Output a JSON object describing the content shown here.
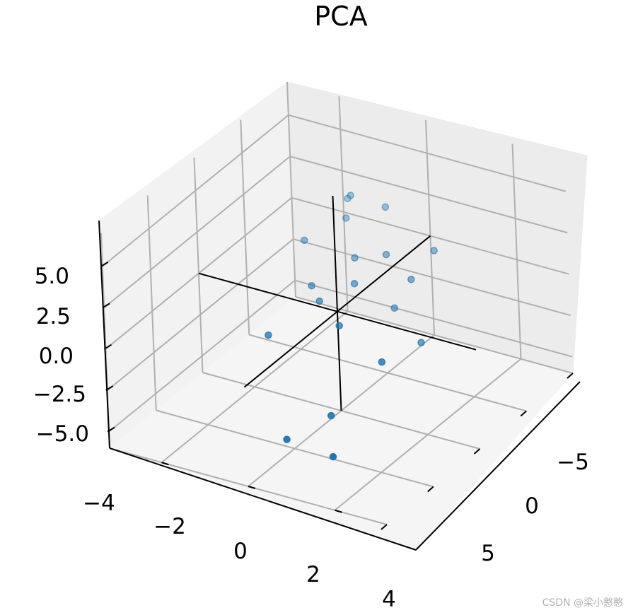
{
  "chart_data": {
    "type": "scatter",
    "title": "PCA",
    "xlabel": "",
    "ylabel": "",
    "zlabel": "",
    "xlim": [
      -4,
      4
    ],
    "ylim": [
      -8,
      8
    ],
    "zlim": [
      -6,
      7
    ],
    "x_ticks": [
      "−4",
      "−2",
      "0",
      "2",
      "4"
    ],
    "y_ticks": [
      "−5",
      "0",
      "5"
    ],
    "z_ticks": [
      "−5.0",
      "−2.5",
      "0.0",
      "2.5",
      "5.0"
    ],
    "grid": true,
    "marker_color": "#1f77b4",
    "points": [
      {
        "x": -2.9,
        "y": -3.2,
        "z": 2.6
      },
      {
        "x": -2.6,
        "y": -2.6,
        "z": 3.3
      },
      {
        "x": -3.1,
        "y": -1.3,
        "z": 2.4
      },
      {
        "x": -2.3,
        "y": -2.5,
        "z": 2.3
      },
      {
        "x": -1.1,
        "y": -3.3,
        "z": 2.1
      },
      {
        "x": -1.6,
        "y": -1.1,
        "z": 1.1
      },
      {
        "x": -2.2,
        "y": -0.1,
        "z": 0.9
      },
      {
        "x": -3.2,
        "y": 1.3,
        "z": 0.4
      },
      {
        "x": -2.2,
        "y": 1.3,
        "z": -0.2
      },
      {
        "x": -1.6,
        "y": 1.1,
        "z": -1.3
      },
      {
        "x": -1.3,
        "y": 3.0,
        "z": -2.5
      },
      {
        "x": -0.9,
        "y": -0.2,
        "z": 0.6
      },
      {
        "x": 0.1,
        "y": -1.3,
        "z": 1.3
      },
      {
        "x": 0.3,
        "y": -0.6,
        "z": 0.8
      },
      {
        "x": 0.8,
        "y": 1.2,
        "z": 0.4
      },
      {
        "x": 0.8,
        "y": 3.6,
        "z": -1.1
      },
      {
        "x": 2.2,
        "y": -1.0,
        "z": 0.8
      },
      {
        "x": 2.5,
        "y": 2.9,
        "z": -2.6
      },
      {
        "x": 3.6,
        "y": 1.8,
        "z": -3.1
      },
      {
        "x": 3.2,
        "y": 3.9,
        "z": -4.0
      }
    ],
    "reference_axes": [
      {
        "from": [
          -4,
          0,
          0
        ],
        "to": [
          4,
          0,
          0
        ]
      },
      {
        "from": [
          0,
          -8,
          0
        ],
        "to": [
          0,
          8,
          0
        ]
      },
      {
        "from": [
          0,
          0,
          -6
        ],
        "to": [
          0,
          0,
          7
        ]
      }
    ]
  },
  "watermark": "CSDN @梁小憨憨"
}
